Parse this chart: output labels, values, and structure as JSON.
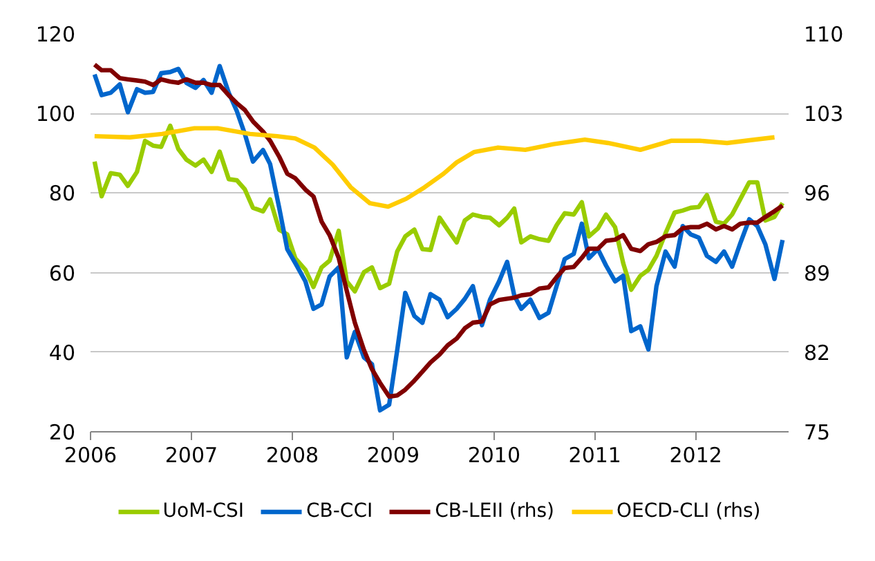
{
  "chart_data": {
    "type": "line",
    "xlim": [
      2006,
      2012.92
    ],
    "xticks": [
      2006,
      2007,
      2008,
      2009,
      2010,
      2011,
      2012
    ],
    "ylim": [
      20,
      120
    ],
    "yticks": [
      20,
      40,
      60,
      80,
      100,
      120
    ],
    "y2lim": [
      75,
      110
    ],
    "y2ticks": [
      75,
      82,
      89,
      96,
      103,
      110
    ],
    "grid": "y",
    "legend": "bottom",
    "line_style": "solid",
    "x": [
      2006.04,
      2006.11,
      2006.2,
      2006.29,
      2006.37,
      2006.46,
      2006.54,
      2006.62,
      2006.7,
      2006.79,
      2006.87,
      2006.95,
      2007.04,
      2007.12,
      2007.2,
      2007.28,
      2007.37,
      2007.45,
      2007.53,
      2007.61,
      2007.71,
      2007.78,
      2007.87,
      2007.95,
      2008.03,
      2008.13,
      2008.21,
      2008.29,
      2008.37,
      2008.46,
      2008.54,
      2008.62,
      2008.71,
      2008.79,
      2008.87,
      2008.96,
      2009.04,
      2009.12,
      2009.21,
      2009.29,
      2009.37,
      2009.46,
      2009.54,
      2009.63,
      2009.71,
      2009.79,
      2009.88,
      2009.96,
      2010.05,
      2010.13,
      2010.2,
      2010.27,
      2010.36,
      2010.45,
      2010.54,
      2010.62,
      2010.7,
      2010.79,
      2010.87,
      2010.94,
      2011.03,
      2011.11,
      2011.2,
      2011.28,
      2011.36,
      2011.45,
      2011.53,
      2011.61,
      2011.7,
      2011.79,
      2011.87,
      2011.95,
      2012.03,
      2012.11,
      2012.2,
      2012.28,
      2012.36,
      2012.44,
      2012.53,
      2012.61,
      2012.69,
      2012.78,
      2012.86
    ],
    "series": [
      {
        "name": "UoM-CSI",
        "color": "#99cc00",
        "values": [
          87.9,
          79.2,
          85,
          84.6,
          81.8,
          85.3,
          93.1,
          91.9,
          91.6,
          96.9,
          91.1,
          88.4,
          86.9,
          88.4,
          85.3,
          90.4,
          83.5,
          83.2,
          80.9,
          76.3,
          75.4,
          78.4,
          70.8,
          69.6,
          63.6,
          60.7,
          56.4,
          61.3,
          63.0,
          70.5,
          57.8,
          55.3,
          60.1,
          61.3,
          56.1,
          57.2,
          65.3,
          69.1,
          70.8,
          65.9,
          65.7,
          73.8,
          70.8,
          67.6,
          73.1,
          74.6,
          74.0,
          73.8,
          71.9,
          73.8,
          76.1,
          67.6,
          69.1,
          68.4,
          68.0,
          71.9,
          74.9,
          74.6,
          77.7,
          69.1,
          71.1,
          74.6,
          71.4,
          62.4,
          55.7,
          59.2,
          60.7,
          64.2,
          69.9,
          75.1,
          75.6,
          76.3,
          76.5,
          79.5,
          72.8,
          72.3,
          74.6,
          78.4,
          82.7,
          82.7,
          73.1,
          74.0,
          77.5
        ]
      },
      {
        "name": "CB-CCI",
        "color": "#0066cc",
        "values": [
          109.8,
          104.6,
          105.2,
          107.3,
          100.3,
          106.1,
          105.2,
          105.4,
          110.1,
          110.4,
          111.2,
          107.7,
          106.4,
          108.4,
          105.2,
          111.9,
          105.2,
          100.6,
          94.8,
          87.9,
          90.8,
          87.3,
          76.3,
          65.9,
          62.4,
          57.8,
          50.9,
          52.0,
          59.0,
          61.3,
          38.7,
          45.1,
          38.7,
          37.0,
          25.4,
          26.8,
          40.5,
          54.9,
          49.1,
          47.4,
          54.6,
          53.2,
          48.8,
          50.9,
          53.4,
          56.6,
          46.8,
          53.2,
          57.8,
          62.7,
          54.3,
          50.9,
          53.2,
          48.6,
          49.9,
          56.6,
          63.4,
          64.7,
          72.3,
          63.6,
          65.9,
          61.8,
          57.8,
          59.2,
          45.3,
          46.5,
          40.7,
          56.6,
          65.3,
          61.5,
          71.7,
          69.6,
          68.8,
          64.2,
          62.7,
          65.3,
          61.5,
          67.3,
          73.4,
          71.7,
          67.1,
          58.4,
          68.2
        ]
      },
      {
        "name": "CB-LEII (rhs)",
        "color": "#800000",
        "axis": "y2",
        "values": [
          107.3,
          106.8,
          106.8,
          106.1,
          106.0,
          105.9,
          105.8,
          105.5,
          106.0,
          105.8,
          105.7,
          106.0,
          105.7,
          105.7,
          105.5,
          105.5,
          104.6,
          103.9,
          103.3,
          102.3,
          101.4,
          100.6,
          99.2,
          97.7,
          97.3,
          96.3,
          95.7,
          93.5,
          92.3,
          90.3,
          87.4,
          84.6,
          82.2,
          80.5,
          79.3,
          78.1,
          78.2,
          78.7,
          79.5,
          80.3,
          81.1,
          81.8,
          82.6,
          83.2,
          84.1,
          84.6,
          84.7,
          86.2,
          86.6,
          86.7,
          86.8,
          87.0,
          87.1,
          87.6,
          87.7,
          88.6,
          89.4,
          89.5,
          90.3,
          91.1,
          91.1,
          91.8,
          91.9,
          92.3,
          91.1,
          90.9,
          91.5,
          91.7,
          92.2,
          92.3,
          92.9,
          93.0,
          93.0,
          93.3,
          92.8,
          93.1,
          92.8,
          93.3,
          93.4,
          93.4,
          93.9,
          94.4,
          94.9
        ]
      },
      {
        "name": "OECD-CLI (rhs)",
        "color": "#ffcc00",
        "axis": "y2",
        "x": [
          2006.04,
          2006.39,
          2006.71,
          2007.03,
          2007.26,
          2007.58,
          2007.85,
          2008.03,
          2008.22,
          2008.4,
          2008.58,
          2008.77,
          2008.95,
          2009.13,
          2009.31,
          2009.5,
          2009.63,
          2009.8,
          2010.04,
          2010.31,
          2010.59,
          2010.9,
          2011.13,
          2011.45,
          2011.76,
          2012.04,
          2012.31,
          2012.59,
          2012.78
        ],
        "values": [
          101.0,
          100.9,
          101.2,
          101.7,
          101.7,
          101.2,
          101.0,
          100.8,
          100.0,
          98.5,
          96.5,
          95.1,
          94.8,
          95.5,
          96.5,
          97.7,
          98.7,
          99.6,
          100.0,
          99.8,
          100.3,
          100.7,
          100.4,
          99.8,
          100.6,
          100.6,
          100.4,
          100.7,
          100.9
        ]
      }
    ]
  }
}
